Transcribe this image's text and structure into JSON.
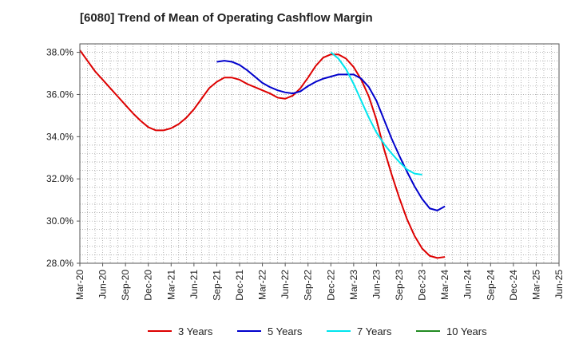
{
  "chart_data": {
    "type": "line",
    "title": "[6080]  Trend of Mean of Operating Cashflow Margin",
    "xlabel": "",
    "ylabel": "",
    "ylim": [
      28.0,
      38.4
    ],
    "grid": true,
    "legend_position": "bottom",
    "y_ticks": [
      "38.0%",
      "36.0%",
      "34.0%",
      "32.0%",
      "30.0%",
      "28.0%"
    ],
    "y_tick_values": [
      38,
      36,
      34,
      32,
      30,
      28
    ],
    "x_ticks": [
      "Mar-20",
      "Jun-20",
      "Sep-20",
      "Dec-20",
      "Mar-21",
      "Jun-21",
      "Sep-21",
      "Dec-21",
      "Mar-22",
      "Jun-22",
      "Sep-22",
      "Dec-22",
      "Mar-23",
      "Jun-23",
      "Sep-23",
      "Dec-23",
      "Mar-24",
      "Jun-24",
      "Sep-24",
      "Dec-24",
      "Mar-25",
      "Jun-25"
    ],
    "series": [
      {
        "name": "3 Years",
        "color": "#dd0000",
        "start_index": 0,
        "values": [
          38.1,
          37.6,
          37.1,
          36.7,
          36.3,
          35.9,
          35.5,
          35.1,
          34.75,
          34.45,
          34.3,
          34.3,
          34.4,
          34.6,
          34.9,
          35.3,
          35.8,
          36.3,
          36.6,
          36.8,
          36.8,
          36.7,
          36.5,
          36.35,
          36.2,
          36.05,
          35.85,
          35.8,
          35.95,
          36.3,
          36.8,
          37.35,
          37.75,
          37.9,
          37.9,
          37.7,
          37.3,
          36.7,
          35.9,
          34.8,
          33.4,
          32.2,
          31.1,
          30.1,
          29.3,
          28.7,
          28.35,
          28.25,
          28.3
        ]
      },
      {
        "name": "5 Years",
        "color": "#0000cc",
        "start_index": 18,
        "values": [
          37.55,
          37.6,
          37.55,
          37.4,
          37.15,
          36.85,
          36.55,
          36.35,
          36.2,
          36.1,
          36.05,
          36.15,
          36.4,
          36.6,
          36.75,
          36.85,
          36.95,
          36.95,
          36.95,
          36.75,
          36.35,
          35.7,
          34.8,
          33.9,
          33.1,
          32.35,
          31.65,
          31.05,
          30.6,
          30.5,
          30.7
        ]
      },
      {
        "name": "7 Years",
        "color": "#00e5ee",
        "start_index": 33,
        "values": [
          38.0,
          37.7,
          37.2,
          36.5,
          35.7,
          34.9,
          34.2,
          33.65,
          33.2,
          32.8,
          32.45,
          32.25,
          32.2
        ]
      },
      {
        "name": "10 Years",
        "color": "#228b22",
        "start_index": 0,
        "values": []
      }
    ]
  }
}
